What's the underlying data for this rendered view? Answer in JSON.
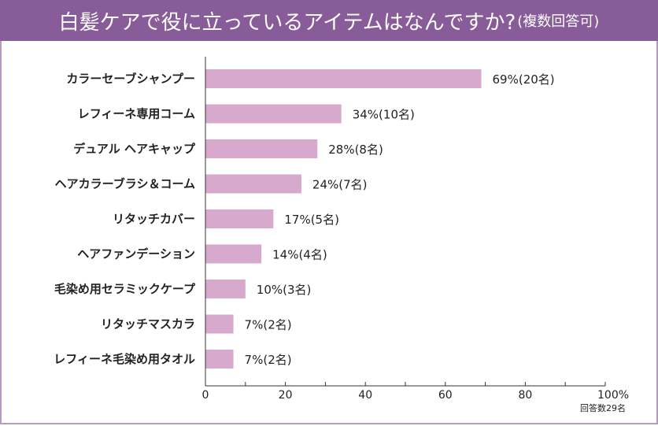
{
  "header": {
    "title": "白髪ケアで役に立っているアイテムはなんですか?",
    "subtitle": "(複数回答可)"
  },
  "chart_data": {
    "type": "bar",
    "orientation": "horizontal",
    "title": "白髪ケアで役に立っているアイテムはなんですか?(複数回答可)",
    "categories": [
      "カラーセーブシャンプー",
      "レフィーネ専用コーム",
      "デュアル ヘアキャップ",
      "ヘアカラーブラシ＆コーム",
      "リタッチカバー",
      "ヘアファンデーション",
      "毛染め用セラミックケープ",
      "リタッチマスカラ",
      "レフィーネ毛染め用タオル"
    ],
    "values": [
      69,
      34,
      28,
      24,
      17,
      14,
      10,
      7,
      7
    ],
    "counts": [
      20,
      10,
      8,
      7,
      5,
      4,
      3,
      2,
      2
    ],
    "labels": [
      "69%(20名)",
      "34%(10名)",
      "28%(8名)",
      "24%(7名)",
      "17%(5名)",
      "14%(4名)",
      "10%(3名)",
      "7%(2名)",
      "7%(2名)"
    ],
    "xlim": [
      0,
      100
    ],
    "xticks": [
      "0",
      "20",
      "40",
      "60",
      "80",
      "100%"
    ],
    "xtick_values": [
      0,
      20,
      40,
      60,
      80,
      100
    ],
    "bar_color": "#d7a9cc",
    "note": "回答数29名"
  }
}
